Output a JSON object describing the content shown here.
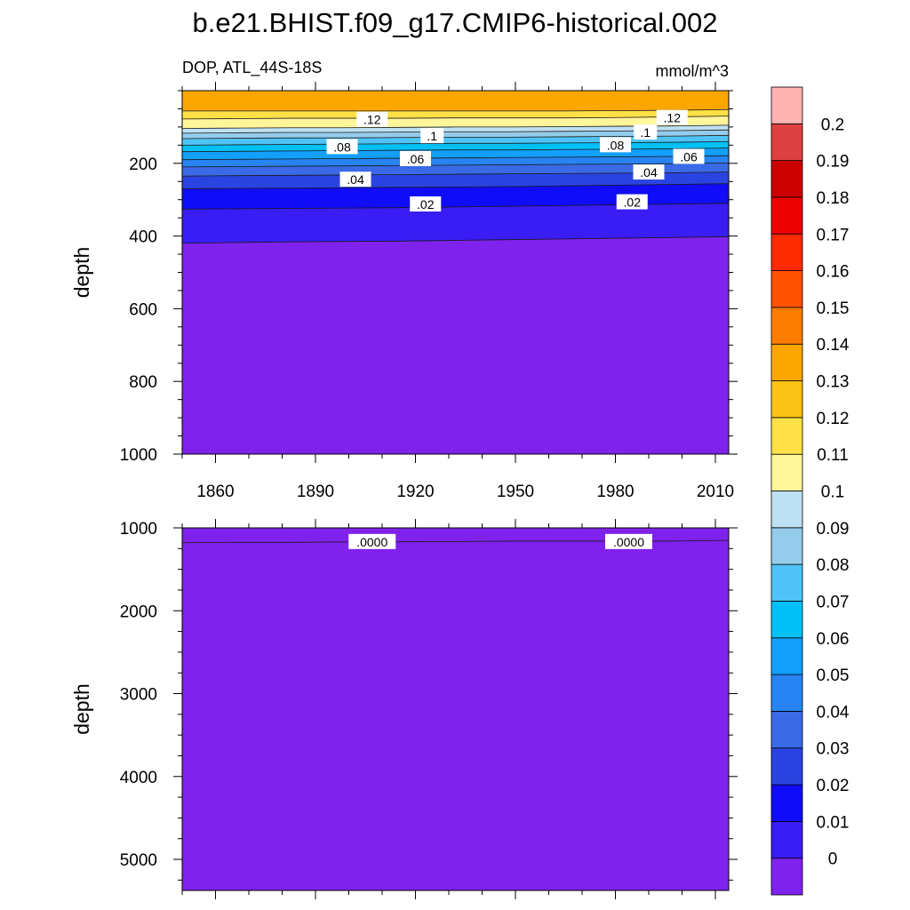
{
  "chart_data": {
    "type": "contour",
    "title": "b.e21.BHIST.f09_g17.CMIP6-historical.002",
    "variable_label": "DOP, ATL_44S-18S",
    "units": "mmol/m^3",
    "x": {
      "range": [
        1850,
        2014
      ],
      "ticks": [
        1860,
        1890,
        1920,
        1950,
        1980,
        2010
      ],
      "minor_step": 10
    },
    "colorbar": {
      "levels": [
        0,
        0.01,
        0.02,
        0.03,
        0.04,
        0.05,
        0.06,
        0.07,
        0.08,
        0.09,
        0.1,
        0.11,
        0.12,
        0.13,
        0.14,
        0.15,
        0.16,
        0.17,
        0.18,
        0.19,
        0.2
      ],
      "labels": [
        "0",
        "0.01",
        "0.02",
        "0.03",
        "0.04",
        "0.05",
        "0.06",
        "0.07",
        "0.08",
        "0.09",
        "0.1",
        "0.11",
        "0.12",
        "0.13",
        "0.14",
        "0.15",
        "0.16",
        "0.17",
        "0.18",
        "0.19",
        "0.2"
      ],
      "colors": [
        "#7f22ee",
        "#3a1cf4",
        "#100cf7",
        "#2a44e2",
        "#3a6ae6",
        "#2784f2",
        "#139ffc",
        "#00c0f6",
        "#4fc3f5",
        "#95ccec",
        "#bde0f2",
        "#fff59a",
        "#ffe046",
        "#fbc218",
        "#fca600",
        "#fc7c00",
        "#fe5200",
        "#ff2a00",
        "#ed0000",
        "#cd0000",
        "#dc4040",
        "#ffb2b2"
      ]
    },
    "panels": [
      {
        "ylabel": "depth",
        "ylim": [
          0,
          1000
        ],
        "y_reversed": true,
        "y_ticks": [
          200,
          400,
          600,
          800,
          1000
        ],
        "y_minor_step": 50,
        "y_top_cap": 20,
        "x_tick_labels_shown": true,
        "contours": [
          {
            "level": 0.13,
            "depth": [
              56,
              56,
              56,
              56,
              56,
              56,
              56,
              56,
              55,
              54,
              52
            ],
            "color_above": "#fca600"
          },
          {
            "level": 0.12,
            "depth": [
              78,
              77,
              76,
              76,
              76,
              75,
              75,
              75,
              74,
              72,
              70
            ]
          },
          {
            "level": 0.11,
            "depth": [
              104,
              103,
              102,
              102,
              101,
              100,
              100,
              99,
              98,
              97,
              95
            ]
          },
          {
            "level": 0.1,
            "depth": [
              117,
              116,
              115,
              115,
              114,
              113,
              113,
              112,
              111,
              110,
              108
            ]
          },
          {
            "level": 0.09,
            "depth": [
              132,
              131,
              130,
              130,
              129,
              128,
              128,
              127,
              126,
              125,
              123
            ]
          },
          {
            "level": 0.08,
            "depth": [
              150,
              149,
              148,
              147,
              146,
              145,
              145,
              144,
              143,
              142,
              140
            ]
          },
          {
            "level": 0.07,
            "depth": [
              168,
              167,
              166,
              165,
              164,
              163,
              163,
              162,
              161,
              160,
              158
            ]
          },
          {
            "level": 0.06,
            "depth": [
              190,
              189,
              188,
              187,
              186,
              185,
              184,
              183,
              182,
              181,
              179
            ]
          },
          {
            "level": 0.05,
            "depth": [
              210,
              209,
              208,
              207,
              206,
              205,
              204,
              203,
              202,
              201,
              199
            ]
          },
          {
            "level": 0.04,
            "depth": [
              235,
              234,
              233,
              232,
              231,
              230,
              229,
              228,
              227,
              226,
              224
            ]
          },
          {
            "level": 0.03,
            "depth": [
              270,
              269,
              268,
              267,
              266,
              265,
              264,
              262,
              260,
              258,
              256
            ]
          },
          {
            "level": 0.02,
            "depth": [
              326,
              325,
              324,
              323,
              322,
              320,
              318,
              316,
              314,
              312,
              310
            ]
          },
          {
            "level": 0.01,
            "depth": [
              420,
              418,
              416,
              415,
              414,
              412,
              410,
              408,
              406,
              404,
              402
            ]
          }
        ],
        "contour_years": [
          1850,
          1866,
          1883,
          1899,
          1916,
          1932,
          1948,
          1965,
          1981,
          1998,
          2014
        ],
        "contour_labels": [
          {
            "text": ".12",
            "year": 1907,
            "depth": 80
          },
          {
            "text": ".12",
            "year": 1997,
            "depth": 75
          },
          {
            "text": ".1",
            "year": 1925,
            "depth": 125
          },
          {
            "text": ".1",
            "year": 1989,
            "depth": 115
          },
          {
            "text": ".08",
            "year": 1898,
            "depth": 155
          },
          {
            "text": ".08",
            "year": 1980,
            "depth": 150
          },
          {
            "text": ".06",
            "year": 1920,
            "depth": 188
          },
          {
            "text": ".06",
            "year": 2002,
            "depth": 182
          },
          {
            "text": ".04",
            "year": 1902,
            "depth": 245
          },
          {
            "text": ".04",
            "year": 1990,
            "depth": 225
          },
          {
            "text": ".02",
            "year": 1923,
            "depth": 313
          },
          {
            "text": ".02",
            "year": 1985,
            "depth": 307
          }
        ]
      },
      {
        "ylabel": "depth",
        "ylim": [
          1000,
          5375
        ],
        "y_reversed": true,
        "y_ticks": [
          1000,
          2000,
          3000,
          4000,
          5000
        ],
        "y_minor_step": 250,
        "x_tick_labels_shown": false,
        "contours": [
          {
            "level": 0.0,
            "depth": [
              1180,
              1175,
              1175,
              1170,
              1168,
              1165,
              1160,
              1160,
              1160,
              1160,
              1150
            ]
          }
        ],
        "contour_years": [
          1850,
          1866,
          1883,
          1899,
          1916,
          1932,
          1948,
          1965,
          1981,
          1998,
          2014
        ],
        "contour_labels": [
          {
            "text": ".0000",
            "year": 1907,
            "depth": 1170
          },
          {
            "text": ".0000",
            "year": 1984,
            "depth": 1170
          }
        ]
      }
    ]
  }
}
